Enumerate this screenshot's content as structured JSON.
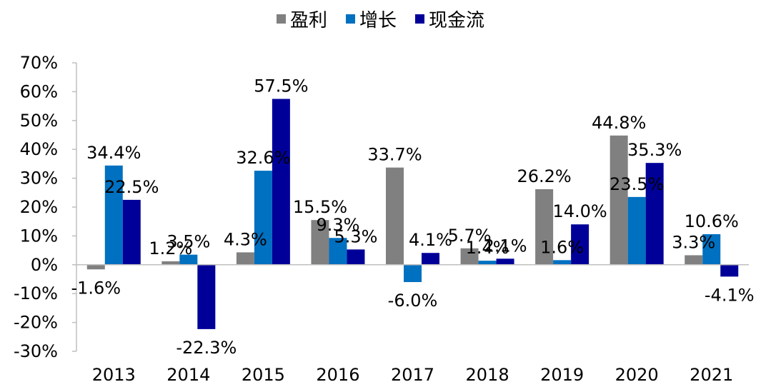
{
  "chart_data": {
    "type": "bar",
    "categories": [
      "2013",
      "2014",
      "2015",
      "2016",
      "2017",
      "2018",
      "2019",
      "2020",
      "2021"
    ],
    "series": [
      {
        "name": "盈利",
        "color": "#808080",
        "values": [
          -1.6,
          1.2,
          4.3,
          15.5,
          33.7,
          5.7,
          26.2,
          44.8,
          3.3
        ],
        "labels": [
          "-1.6%",
          "1.2%",
          "4.3%",
          "15.5%",
          "33.7%",
          "5.7%",
          "26.2%",
          "44.8%",
          "3.3%"
        ]
      },
      {
        "name": "增长",
        "color": "#0070C0",
        "values": [
          34.4,
          3.5,
          32.6,
          9.3,
          -6.0,
          1.4,
          1.6,
          23.5,
          10.6
        ],
        "labels": [
          "34.4%",
          "3.5%",
          "32.6%",
          "9.3%",
          "-6.0%",
          "1.4%",
          "1.6%",
          "23.5%",
          "10.6%"
        ]
      },
      {
        "name": "现金流",
        "color": "#000099",
        "values": [
          22.5,
          -22.3,
          57.5,
          5.3,
          4.1,
          2.1,
          14.0,
          35.3,
          -4.1
        ],
        "labels": [
          "22.5%",
          "-22.3%",
          "57.5%",
          "5.3%",
          "4.1%",
          "2.1%",
          "14.0%",
          "35.3%",
          "-4.1%"
        ]
      }
    ],
    "ylim": [
      -30,
      70
    ],
    "ytick_labels": [
      "70%",
      "60%",
      "50%",
      "40%",
      "30%",
      "20%",
      "10%",
      "0%",
      "-10%",
      "-20%",
      "-30%"
    ],
    "title": "",
    "xlabel": "",
    "ylabel": "",
    "legend_position": "top-center",
    "grid": false
  }
}
